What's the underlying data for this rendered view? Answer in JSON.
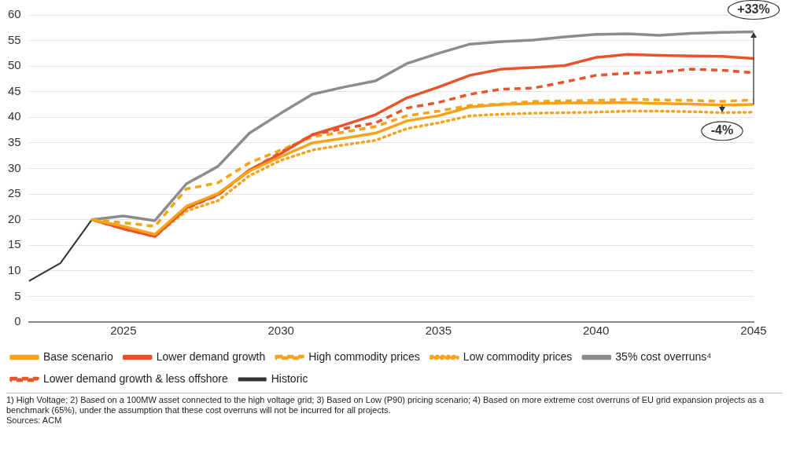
{
  "chart_data": {
    "type": "line",
    "x": [
      2024,
      2025,
      2026,
      2027,
      2028,
      2029,
      2030,
      2031,
      2032,
      2033,
      2034,
      2035,
      2036,
      2037,
      2038,
      2039,
      2040,
      2041,
      2042,
      2043,
      2044,
      2045
    ],
    "series": [
      {
        "name": "Base scenario",
        "color": "#f7a21b",
        "line_style": "solid",
        "values": [
          20,
          18.7,
          17.1,
          22.6,
          25.1,
          29.5,
          32.3,
          35.0,
          35.9,
          36.9,
          39.3,
          40.3,
          42.0,
          42.5,
          42.7,
          42.8,
          42.8,
          42.9,
          42.7,
          42.6,
          42.4,
          42.5
        ]
      },
      {
        "name": "Lower demand growth",
        "color": "#e8532a",
        "line_style": "solid",
        "values": [
          20,
          18.2,
          16.7,
          22.3,
          24.9,
          29.7,
          32.9,
          36.6,
          38.5,
          40.5,
          43.8,
          45.9,
          48.2,
          49.4,
          49.7,
          50.1,
          51.7,
          52.3,
          52.1,
          52.0,
          51.9,
          51.5
        ]
      },
      {
        "name": "High commodity prices",
        "color": "#f7a21b",
        "line_style": "dashed",
        "values": [
          20,
          19.4,
          18.7,
          26.0,
          27.2,
          31.1,
          33.6,
          36.2,
          37.1,
          38.2,
          40.3,
          41.2,
          42.3,
          42.6,
          43.1,
          43.2,
          43.3,
          43.5,
          43.4,
          43.3,
          43.1,
          43.4
        ]
      },
      {
        "name": "Low commodity prices",
        "color": "#f7a21b",
        "line_style": "dotted",
        "values": [
          20,
          18.4,
          16.8,
          21.7,
          23.7,
          28.6,
          31.6,
          33.6,
          34.6,
          35.5,
          37.8,
          38.9,
          40.3,
          40.6,
          40.8,
          40.9,
          41.0,
          41.2,
          41.2,
          41.1,
          40.9,
          41.0
        ]
      },
      {
        "name": "35% cost overruns⁴",
        "color": "#8c8c8c",
        "line_style": "solid",
        "values": [
          20,
          20.7,
          19.8,
          27.0,
          30.4,
          36.9,
          40.8,
          44.5,
          45.9,
          47.1,
          50.5,
          52.5,
          54.3,
          54.8,
          55.1,
          55.7,
          56.2,
          56.3,
          56.0,
          56.4,
          56.6,
          56.7
        ]
      },
      {
        "name": "Lower demand growth & less offshore",
        "color": "#e8532a",
        "line_style": "dashed",
        "values": [
          20,
          18.2,
          16.7,
          22.2,
          24.8,
          29.6,
          33.2,
          36.6,
          37.8,
          38.9,
          41.8,
          42.9,
          44.5,
          45.5,
          45.7,
          46.9,
          48.2,
          48.6,
          48.8,
          49.4,
          49.2,
          48.7
        ]
      },
      {
        "name": "Historic",
        "color": "#333333",
        "line_style": "solid",
        "x": [
          2022,
          2023,
          2024
        ],
        "values": [
          8,
          11.5,
          20
        ]
      }
    ],
    "xlim": [
      2022,
      2045
    ],
    "xticks": [
      2025,
      2030,
      2035,
      2040,
      2045
    ],
    "ylim": [
      0,
      60
    ],
    "yticks": [
      0,
      5,
      10,
      15,
      20,
      25,
      30,
      35,
      40,
      45,
      50,
      55,
      60
    ],
    "grid": "y",
    "legend": "bottom",
    "marker": "none",
    "annotations": [
      {
        "text": "+33%",
        "x": 2045,
        "y": 56.7
      },
      {
        "text": "-4%",
        "x": 2044,
        "y": 41
      },
      "1) High Voltage; 2) Based on a 100MW asset connected to the high voltage grid; 3) Based on Low (P90) pricing scenario; 4) Based on more extreme cost overruns of EU grid expansion projects as a benchmark (65%), under the assumption that these cost overruns will not be incurred for all projects.",
      "Sources: ACM"
    ]
  }
}
